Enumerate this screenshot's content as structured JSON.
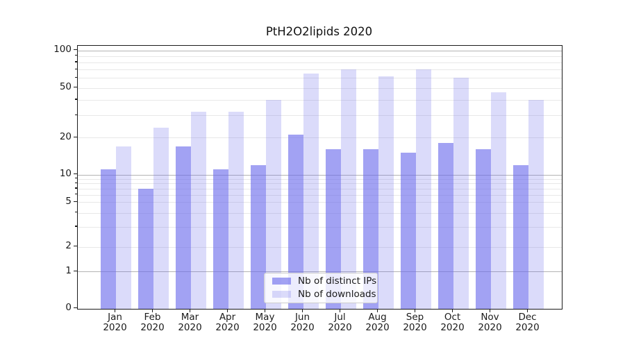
{
  "title": "PtH2O2lipids 2020",
  "chart_data": {
    "type": "bar",
    "x_categories": [
      "Jan 2020",
      "Feb 2020",
      "Mar 2020",
      "Apr 2020",
      "May 2020",
      "Jun 2020",
      "Jul 2020",
      "Aug 2020",
      "Sep 2020",
      "Oct 2020",
      "Nov 2020",
      "Dec 2020"
    ],
    "series": [
      {
        "name": "Nb of distinct IPs",
        "color": "rgba(105,105,235,0.62)",
        "values": [
          11,
          7,
          17,
          11,
          12,
          21,
          16,
          16,
          15,
          18,
          16,
          12
        ]
      },
      {
        "name": "Nb of downloads",
        "color": "rgba(105,105,235,0.24)",
        "values": [
          17,
          24,
          32,
          32,
          40,
          65,
          70,
          62,
          70,
          60,
          46,
          40
        ]
      }
    ],
    "y_axis": {
      "scale": "log-like",
      "major_ticks": [
        0,
        1,
        2,
        5,
        10,
        20,
        50,
        100
      ],
      "tick_labels": [
        "0",
        "1",
        "2",
        "5",
        "10",
        "20",
        "50",
        "100"
      ],
      "minor_ticks": [
        3,
        4,
        6,
        7,
        8,
        9,
        30,
        40,
        60,
        70,
        80,
        90
      ],
      "range_top_value": 110
    },
    "grid": true,
    "legend_position": "lower-center-inside",
    "colors": {
      "major_grid": "#b3b3b3",
      "minor_grid": "#e8e8e8",
      "axis": "#1a1a1a",
      "background": "#ffffff"
    }
  }
}
